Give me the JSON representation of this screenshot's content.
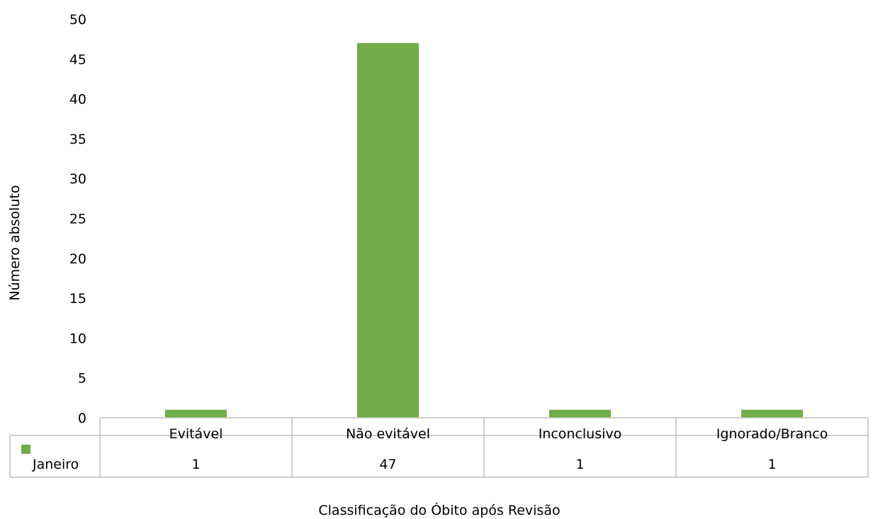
{
  "chart_data": {
    "type": "bar",
    "categories": [
      "Evitável",
      "Não evitável",
      "Inconclusivo",
      "Ignorado/Branco"
    ],
    "series": [
      {
        "name": "Janeiro",
        "values": [
          1,
          47,
          1,
          1
        ],
        "value_labels": [
          "1",
          "47",
          "1",
          "1"
        ],
        "color": "#70AD47"
      }
    ],
    "title": "",
    "xlabel": "Classificação do Óbito após Revisão",
    "ylabel": "Número absoluto",
    "ylim": [
      0,
      50
    ],
    "yticks": [
      0,
      5,
      10,
      15,
      20,
      25,
      30,
      35,
      40,
      45,
      50
    ],
    "ytick_labels": [
      "0",
      "5",
      "10",
      "15",
      "20",
      "25",
      "30",
      "35",
      "40",
      "45",
      "50"
    ],
    "grid": false,
    "legend": "data-table",
    "data_table": true,
    "table_border_color": "#BFBFBF"
  }
}
